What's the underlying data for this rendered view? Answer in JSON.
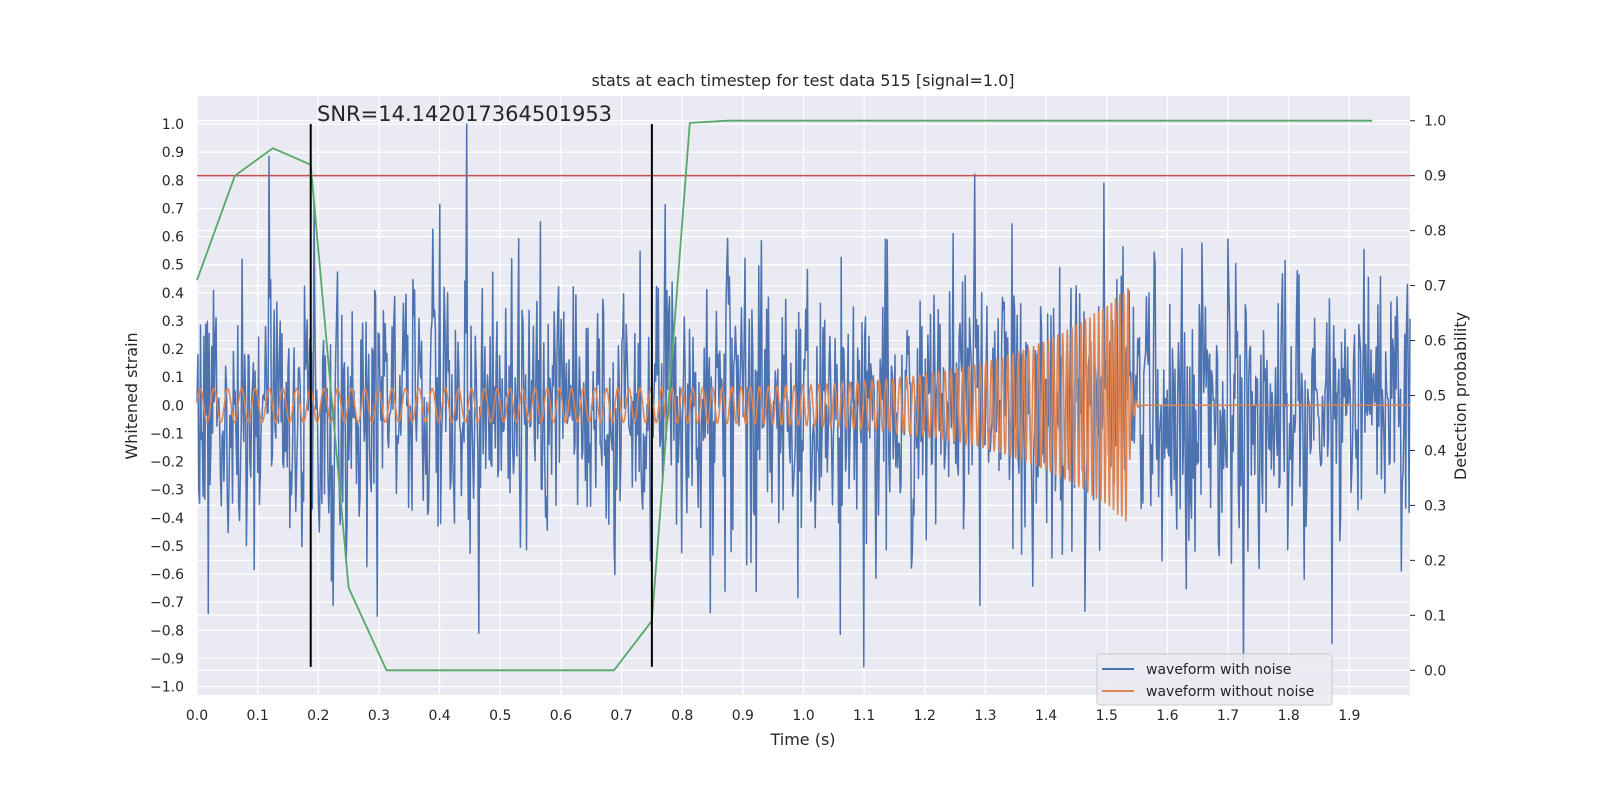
{
  "chart_data": {
    "type": "line",
    "title": "stats at each timestep for test data 515 [signal=1.0]",
    "xlabel": "Time (s)",
    "ylabel": "Whitened strain",
    "ylabel_right": "Detection probability",
    "annotation": "SNR=14.142017364501953",
    "xlim": [
      0.0,
      2.0
    ],
    "ylim": [
      -1.03,
      1.1
    ],
    "ylim_right": [
      -0.045,
      1.045
    ],
    "x_ticks": [
      "0.0",
      "0.1",
      "0.2",
      "0.3",
      "0.4",
      "0.5",
      "0.6",
      "0.7",
      "0.8",
      "0.9",
      "1.0",
      "1.1",
      "1.2",
      "1.3",
      "1.4",
      "1.5",
      "1.6",
      "1.7",
      "1.8",
      "1.9"
    ],
    "y_ticks": [
      "1.0",
      "0.9",
      "0.8",
      "0.7",
      "0.6",
      "0.5",
      "0.4",
      "0.3",
      "0.2",
      "0.1",
      "0.0",
      "−0.1",
      "−0.2",
      "−0.3",
      "−0.4",
      "−0.5",
      "−0.6",
      "−0.7",
      "−0.8",
      "−0.9",
      "−1.0"
    ],
    "y_ticks_right": [
      "1.0",
      "0.9",
      "0.8",
      "0.7",
      "0.6",
      "0.5",
      "0.4",
      "0.3",
      "0.2",
      "0.1",
      "0.0"
    ],
    "grid": true,
    "legend_position": "bottom-right",
    "series": [
      {
        "name": "waveform with noise",
        "color": "#4c72b0",
        "axis": "left",
        "x_range": [
          0.0,
          2.0
        ],
        "n_points": 1400,
        "amplitude_std": 0.25,
        "highlight_points": [
          [
            0.445,
            1.0
          ],
          [
            1.1,
            -0.93
          ],
          [
            1.495,
            0.79
          ],
          [
            0.018,
            -0.74
          ],
          [
            0.297,
            -0.75
          ]
        ]
      },
      {
        "name": "waveform without noise",
        "color": "#dd8452",
        "axis": "left",
        "x_range": [
          0.0,
          2.0
        ],
        "chirp": {
          "start_freq_hz": 44,
          "end_freq_hz": 150,
          "start_amplitude": 0.06,
          "peak_amplitude": 0.42,
          "merger_time": 1.535,
          "ringdown_end": 1.56
        }
      },
      {
        "name": "",
        "color": "#55a868",
        "axis": "right",
        "x": [
          0.0,
          0.0625,
          0.125,
          0.1875,
          0.25,
          0.3125,
          0.375,
          0.4375,
          0.5,
          0.5625,
          0.625,
          0.6875,
          0.75,
          0.8125,
          0.875,
          0.9375,
          1.0,
          1.0625,
          1.125,
          1.1875,
          1.25,
          1.3125,
          1.375,
          1.4375,
          1.5,
          1.5625,
          1.625,
          1.6875,
          1.75,
          1.8125,
          1.875,
          1.9375
        ],
        "y": [
          0.71,
          0.9,
          0.95,
          0.92,
          0.15,
          0.0,
          0.0,
          0.0,
          0.0,
          0.0,
          0.0,
          0.0,
          0.09,
          0.996,
          1.0,
          1.0,
          1.0,
          1.0,
          1.0,
          1.0,
          1.0,
          1.0,
          1.0,
          1.0,
          1.0,
          1.0,
          1.0,
          1.0,
          1.0,
          1.0,
          1.0,
          1.0
        ]
      }
    ],
    "threshold_line": {
      "y_right": 0.9,
      "color": "#c44e52"
    },
    "vertical_markers": [
      {
        "x": 0.1875,
        "y_from": -0.93,
        "y_to": 1.0,
        "color": "#000000"
      },
      {
        "x": 0.75,
        "y_from": -0.93,
        "y_to": 1.0,
        "color": "#000000"
      }
    ]
  }
}
